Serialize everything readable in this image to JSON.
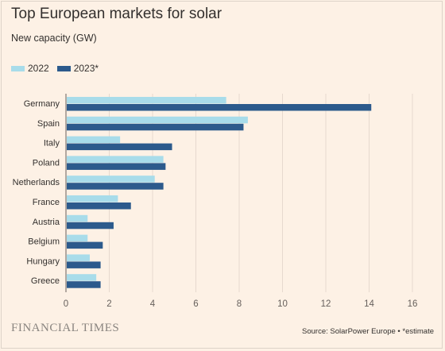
{
  "header": {
    "title": "Top European markets for solar",
    "subtitle": "New capacity (GW)"
  },
  "legend": {
    "items": [
      {
        "label": "2022",
        "color": "#a8dcea"
      },
      {
        "label": "2023*",
        "color": "#2c5a8c"
      }
    ]
  },
  "footer": {
    "brand": "FINANCIAL TIMES",
    "source": "Source: SolarPower Europe • *estimate"
  },
  "chart_data": {
    "type": "bar",
    "orientation": "horizontal",
    "title": "Top European markets for solar",
    "subtitle": "New capacity (GW)",
    "categories": [
      "Germany",
      "Spain",
      "Italy",
      "Poland",
      "Netherlands",
      "France",
      "Austria",
      "Belgium",
      "Hungary",
      "Greece"
    ],
    "series": [
      {
        "name": "2022",
        "color": "#a8dcea",
        "values": [
          7.4,
          8.4,
          2.5,
          4.5,
          4.1,
          2.4,
          1.0,
          1.0,
          1.1,
          1.4
        ]
      },
      {
        "name": "2023*",
        "color": "#2c5a8c",
        "values": [
          14.1,
          8.2,
          4.9,
          4.6,
          4.5,
          3.0,
          2.2,
          1.7,
          1.6,
          1.6
        ]
      }
    ],
    "x_ticks": [
      0,
      2,
      4,
      6,
      8,
      10,
      12,
      14,
      16
    ],
    "xlim": [
      0,
      16
    ],
    "grid": true,
    "legend_position": "top-left"
  }
}
